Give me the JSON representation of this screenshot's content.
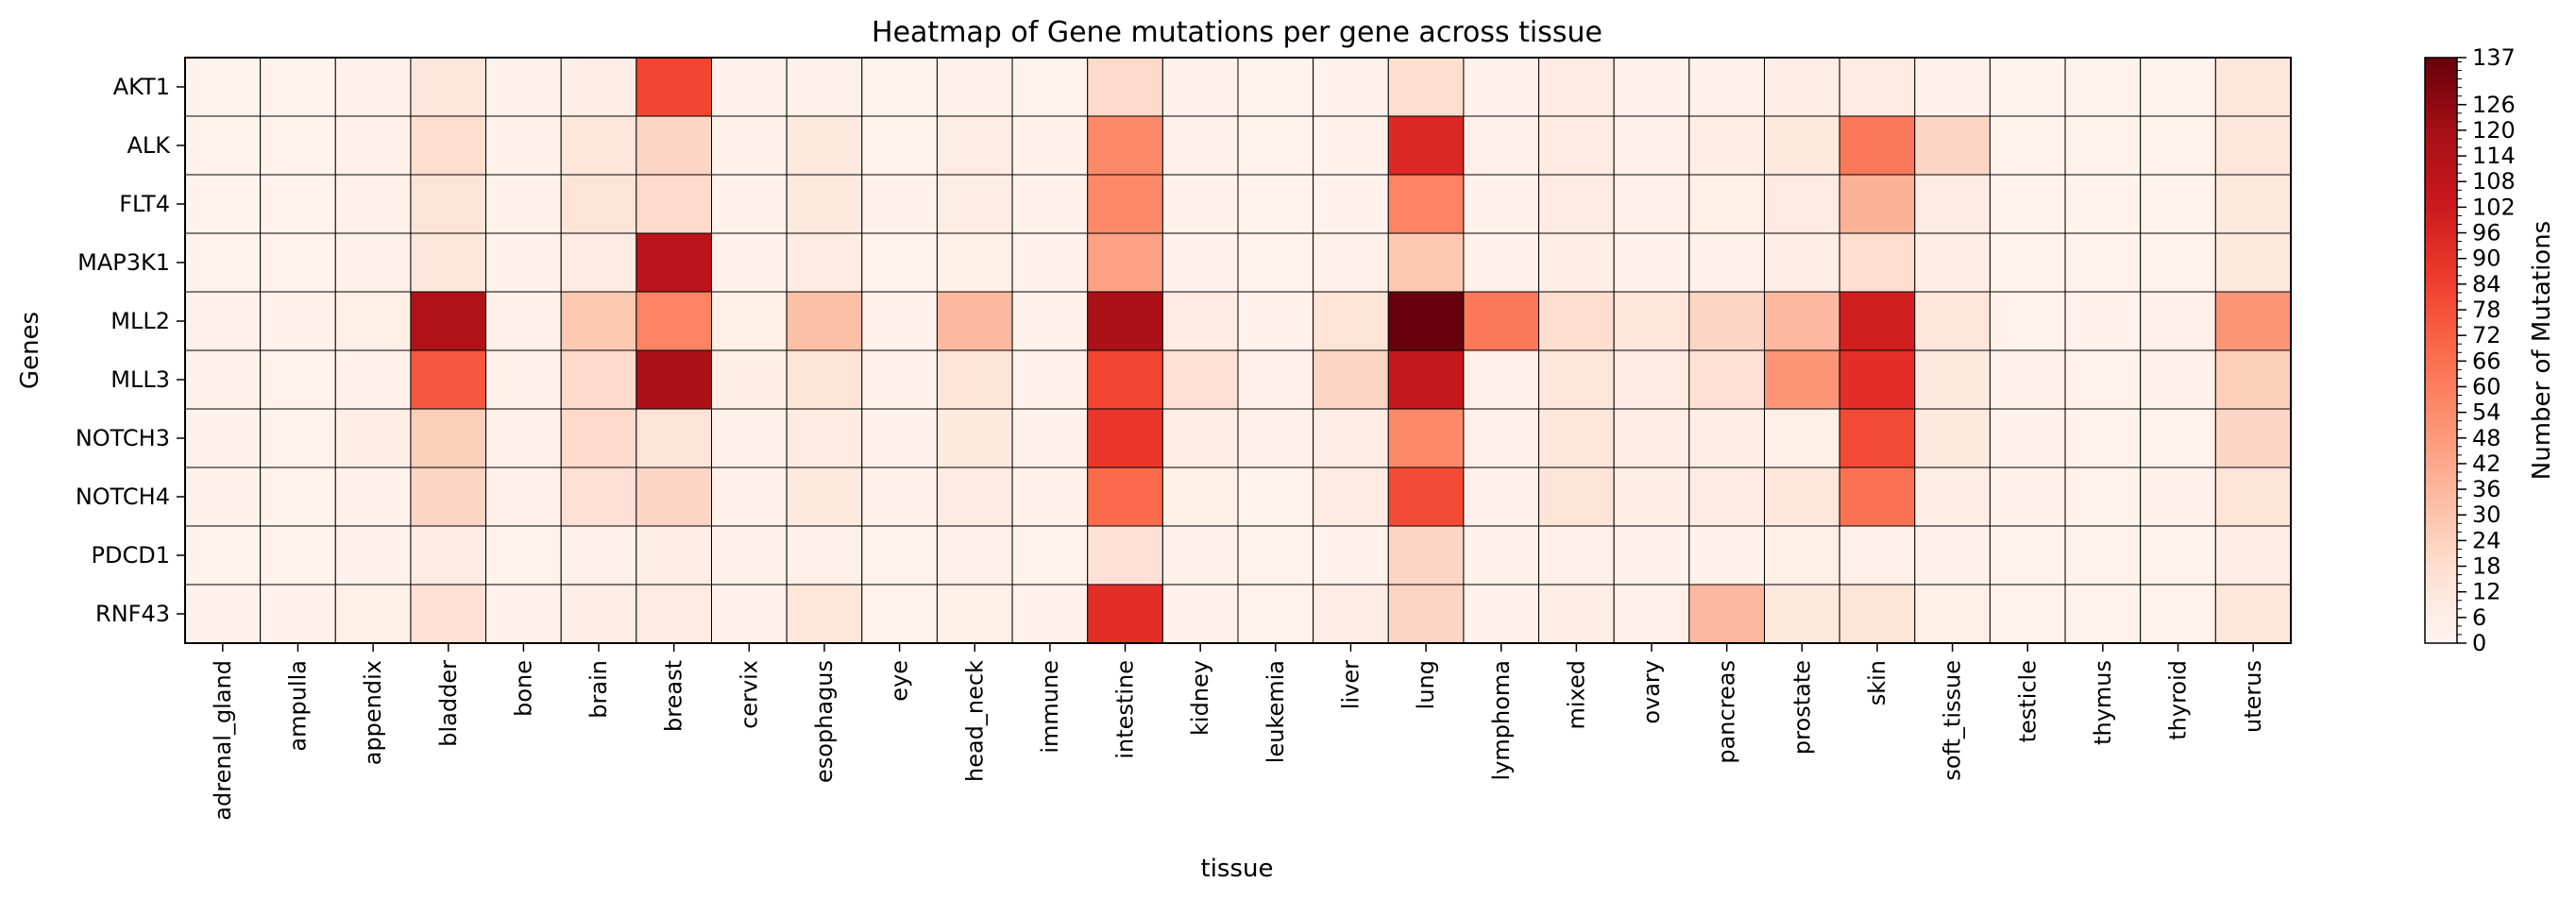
{
  "chart_data": {
    "type": "heatmap",
    "title": "Heatmap of Gene mutations per gene across tissue",
    "xlabel": "tissue",
    "ylabel": "Genes",
    "colorbar_label": "Number of Mutations",
    "colormap": [
      "#fff5f0",
      "#fee0d2",
      "#fcbba1",
      "#fc9272",
      "#fb6a4a",
      "#ef3b2c",
      "#cb181d",
      "#a50f15",
      "#67000d"
    ],
    "vmin": 0,
    "vmax": 137,
    "colorbar_ticks": [
      0,
      6,
      12,
      18,
      24,
      30,
      36,
      42,
      48,
      54,
      60,
      66,
      72,
      78,
      84,
      90,
      96,
      102,
      108,
      114,
      120,
      126,
      137
    ],
    "genes": [
      "AKT1",
      "ALK",
      "FLT4",
      "MAP3K1",
      "MLL2",
      "MLL3",
      "NOTCH3",
      "NOTCH4",
      "PDCD1",
      "RNF43"
    ],
    "tissues": [
      "adrenal_gland",
      "ampulla",
      "appendix",
      "bladder",
      "bone",
      "brain",
      "breast",
      "cervix",
      "esophagus",
      "eye",
      "head_neck",
      "immune",
      "intestine",
      "kidney",
      "leukemia",
      "liver",
      "lung",
      "lymphoma",
      "mixed",
      "ovary",
      "pancreas",
      "prostate",
      "skin",
      "soft_tissue",
      "testicle",
      "thymus",
      "thyroid",
      "uterus"
    ],
    "values": [
      [
        2,
        2,
        4,
        12,
        3,
        6,
        82,
        3,
        4,
        2,
        4,
        2,
        20,
        3,
        2,
        3,
        18,
        3,
        8,
        3,
        4,
        7,
        8,
        4,
        2,
        2,
        2,
        12
      ],
      [
        2,
        2,
        4,
        18,
        3,
        12,
        22,
        3,
        10,
        2,
        7,
        3,
        55,
        4,
        2,
        3,
        95,
        4,
        8,
        4,
        6,
        10,
        62,
        22,
        2,
        2,
        2,
        12
      ],
      [
        2,
        2,
        4,
        14,
        3,
        14,
        20,
        3,
        10,
        3,
        7,
        3,
        55,
        3,
        2,
        3,
        58,
        3,
        8,
        4,
        5,
        9,
        38,
        8,
        2,
        2,
        2,
        10
      ],
      [
        2,
        2,
        4,
        12,
        3,
        8,
        110,
        3,
        8,
        2,
        5,
        3,
        45,
        3,
        2,
        4,
        28,
        3,
        6,
        3,
        4,
        6,
        18,
        6,
        2,
        2,
        2,
        10
      ],
      [
        4,
        3,
        5,
        115,
        4,
        28,
        58,
        5,
        32,
        3,
        35,
        3,
        117,
        8,
        3,
        14,
        137,
        62,
        18,
        12,
        22,
        35,
        100,
        12,
        2,
        3,
        4,
        50
      ],
      [
        3,
        2,
        3,
        75,
        3,
        20,
        117,
        6,
        14,
        3,
        14,
        3,
        82,
        16,
        4,
        22,
        105,
        4,
        12,
        8,
        16,
        50,
        92,
        10,
        3,
        2,
        3,
        25
      ],
      [
        3,
        2,
        6,
        25,
        4,
        20,
        14,
        4,
        8,
        3,
        10,
        3,
        88,
        6,
        4,
        7,
        55,
        4,
        12,
        6,
        6,
        5,
        80,
        10,
        3,
        2,
        2,
        22
      ],
      [
        3,
        2,
        3,
        22,
        4,
        16,
        22,
        4,
        10,
        3,
        8,
        3,
        68,
        5,
        2,
        8,
        80,
        4,
        14,
        6,
        8,
        12,
        65,
        7,
        3,
        2,
        3,
        14
      ],
      [
        2,
        2,
        3,
        8,
        2,
        4,
        6,
        3,
        4,
        2,
        4,
        2,
        16,
        3,
        2,
        3,
        22,
        3,
        4,
        3,
        3,
        5,
        4,
        3,
        2,
        2,
        2,
        6
      ],
      [
        3,
        3,
        5,
        16,
        3,
        6,
        8,
        3,
        12,
        2,
        5,
        3,
        92,
        3,
        2,
        7,
        22,
        3,
        6,
        4,
        35,
        10,
        14,
        5,
        2,
        2,
        2,
        12
      ]
    ]
  }
}
